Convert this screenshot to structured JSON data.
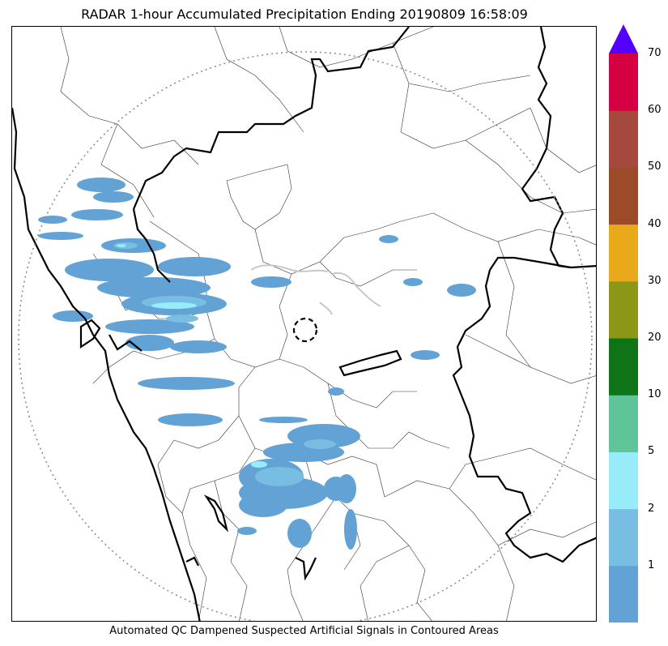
{
  "title": "RADAR 1-hour Accumulated Precipitation Ending 20190809 16:58:09",
  "caption": "Automated QC Dampened Suspected Artificial Signals in Contoured Areas",
  "colorbar": {
    "levels": [
      {
        "label": "",
        "color": "#63a2d4"
      },
      {
        "label": "1",
        "color": "#78bde2"
      },
      {
        "label": "2",
        "color": "#98ecfa"
      },
      {
        "label": "5",
        "color": "#5fc49a"
      },
      {
        "label": "10",
        "color": "#0f7318"
      },
      {
        "label": "20",
        "color": "#8c9617"
      },
      {
        "label": "30",
        "color": "#e8a91b"
      },
      {
        "label": "40",
        "color": "#9b4b27"
      },
      {
        "label": "50",
        "color": "#a5493f"
      },
      {
        "label": "60",
        "color": "#d50042"
      }
    ],
    "top_label": "70",
    "extend_color": "#5500ff"
  },
  "map": {
    "range_ring_color": "#888888",
    "radar_site_marker": "dashed-circle",
    "precip_light_color": "#63a2d4",
    "precip_medium_color": "#78bde2",
    "precip_heavy_color": "#98ecfa",
    "qc_contour_color": "#c8c8c8"
  }
}
